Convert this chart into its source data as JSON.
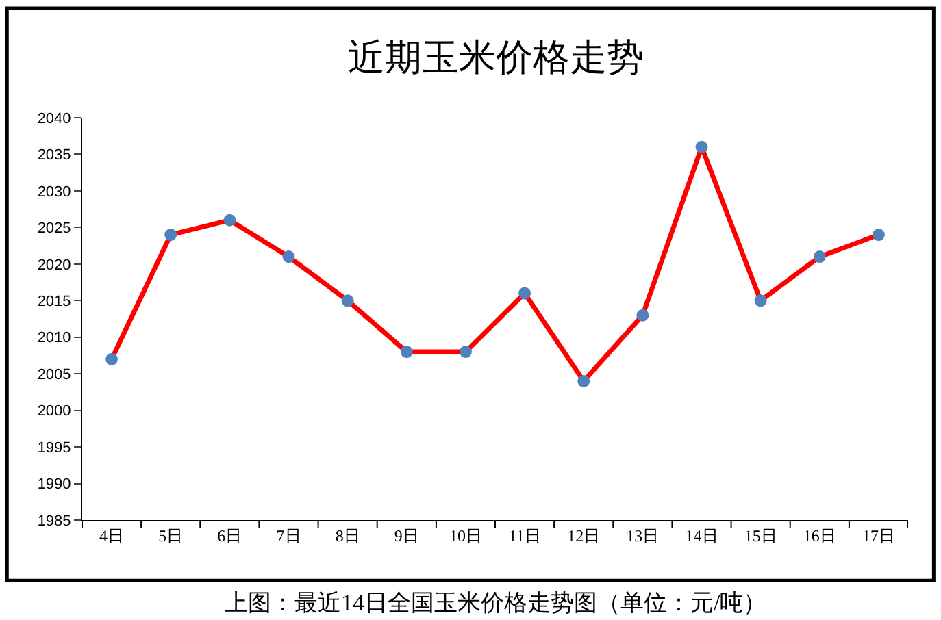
{
  "chart_data": {
    "type": "line",
    "title": "近期玉米价格走势",
    "categories": [
      "4日",
      "5日",
      "6日",
      "7日",
      "8日",
      "9日",
      "10日",
      "11日",
      "12日",
      "13日",
      "14日",
      "15日",
      "16日",
      "17日"
    ],
    "series": [
      {
        "color": "#ff0000",
        "colors": [
          "#4f81bd",
          "#4f81bd",
          "#4f81bd",
          "#4f81bd",
          "#4f81bd",
          "#4f81bd",
          "#4f81bd",
          "#4f81bd",
          "#4f81bd",
          "#4f81bd",
          "#4f81bd",
          "#4f81bd",
          "#4f81bd",
          "#4f81bd"
        ],
        "values": [
          2007,
          2024,
          2026,
          2021,
          2015,
          2008,
          2008,
          2016,
          2004,
          2013,
          2036,
          2015,
          2021,
          2024
        ]
      }
    ],
    "marker": "circle",
    "line_style": "solid",
    "ylim": [
      1985,
      2040
    ],
    "yticks": [
      1985,
      1990,
      1995,
      2000,
      2005,
      2010,
      2015,
      2020,
      2025,
      2030,
      2035,
      2040
    ],
    "legend": false,
    "annotations": [
      "上图：最近14日全国玉米价格走势图（单位：元/吨）"
    ]
  }
}
